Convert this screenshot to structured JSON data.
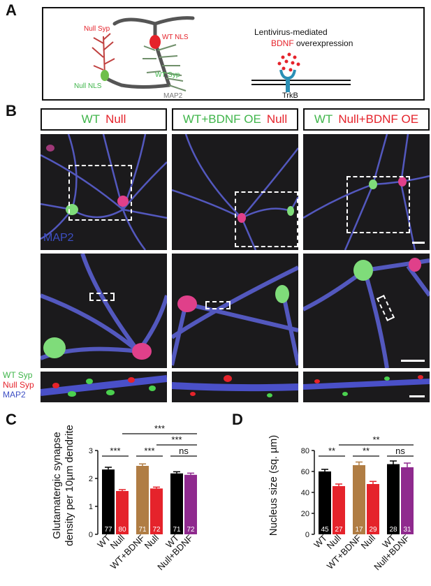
{
  "panels": {
    "a": "A",
    "b": "B",
    "c": "C",
    "d": "D"
  },
  "schematic": {
    "null_syp": "Null Syp",
    "wt_nls": "WT NLS",
    "wt_syp": "WT Syp",
    "null_nls": "Null NLS",
    "map2": "MAP2",
    "lenti_line1": "Lentivirus-mediated",
    "bdnf": "BDNF",
    "overexpression": " overexpression",
    "trkb": "TrkB"
  },
  "headers": [
    {
      "green": "WT",
      "red": "Null"
    },
    {
      "green": "WT+BDNF OE",
      "red": "Null"
    },
    {
      "green": "WT",
      "red": "Null+BDNF OE"
    }
  ],
  "micro": {
    "map2_label": "MAP2",
    "legend": {
      "wt_syp": "WT Syp",
      "null_syp": "Null Syp",
      "map2": "MAP2"
    }
  },
  "colors": {
    "wt": "#000000",
    "null": "#e5232b",
    "wt_bdnf": "#b07d44",
    "null_bdnf": "#8f2a8e",
    "green": "#3fb54a",
    "blue": "#3d4fc4"
  },
  "chart_data": [
    {
      "type": "bar",
      "ylabel": "Glutamatergic synapse density per 10µm dendrite",
      "ylim": [
        0,
        3
      ],
      "yticks": [
        0,
        1,
        2,
        3
      ],
      "categories": [
        "WT",
        "Null",
        "WT+BDNF",
        "Null",
        "WT",
        "Null+BDNF"
      ],
      "values": [
        2.32,
        1.55,
        2.45,
        1.64,
        2.18,
        2.13
      ],
      "errors": [
        0.08,
        0.05,
        0.07,
        0.05,
        0.06,
        0.06
      ],
      "n": [
        "77",
        "80",
        "71",
        "72",
        "71",
        "72"
      ],
      "significance": [
        {
          "between": [
            0,
            1
          ],
          "label": "***",
          "level": 0
        },
        {
          "between": [
            2,
            3
          ],
          "label": "***",
          "level": 0
        },
        {
          "between": [
            4,
            5
          ],
          "label": "ns",
          "level": 0
        },
        {
          "between": [
            3,
            5
          ],
          "label": "***",
          "level": 1
        },
        {
          "between": [
            1,
            5
          ],
          "label": "***",
          "level": 2
        }
      ]
    },
    {
      "type": "bar",
      "ylabel": "Nucleus size (sq. µm)",
      "ylim": [
        0,
        80
      ],
      "yticks": [
        0,
        20,
        40,
        60,
        80
      ],
      "categories": [
        "WT",
        "Null",
        "WT+BDNF",
        "Null",
        "WT",
        "Null+BDNF"
      ],
      "values": [
        60,
        46,
        66,
        48,
        67,
        64
      ],
      "errors": [
        2,
        2,
        3,
        2.5,
        3,
        4
      ],
      "n": [
        "45",
        "27",
        "17",
        "29",
        "28",
        "31"
      ],
      "significance": [
        {
          "between": [
            0,
            1
          ],
          "label": "**",
          "level": 0
        },
        {
          "between": [
            2,
            3
          ],
          "label": "**",
          "level": 0
        },
        {
          "between": [
            4,
            5
          ],
          "label": "ns",
          "level": 0
        },
        {
          "between": [
            1,
            5
          ],
          "label": "**",
          "level": 1
        }
      ]
    }
  ]
}
